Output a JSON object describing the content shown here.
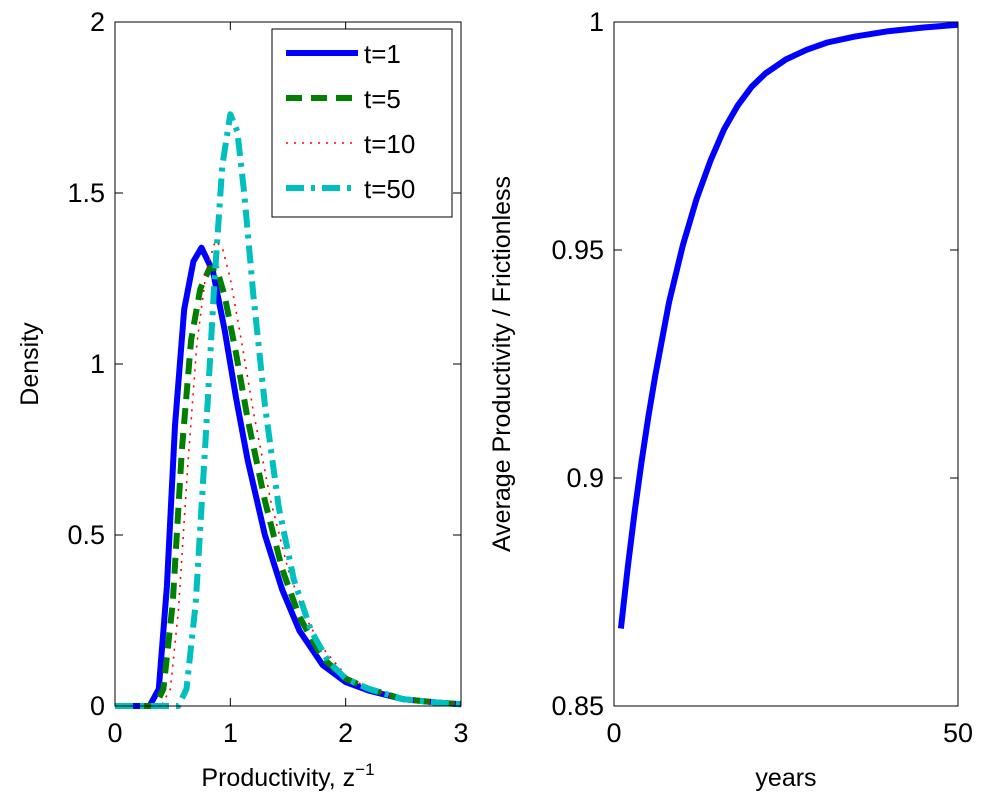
{
  "chart_data": [
    {
      "type": "line",
      "xlabel": "Productivity, z",
      "xlabel_sup": "−1",
      "ylabel": "Density",
      "xlim": [
        0,
        3
      ],
      "ylim": [
        0,
        2
      ],
      "xticks": [
        "0",
        "1",
        "2",
        "3"
      ],
      "yticks": [
        "0",
        "0.5",
        "1",
        "1.5",
        "2"
      ],
      "legend_position": "top-right",
      "series": [
        {
          "name": "t=1",
          "color": "#0000ff",
          "style": "solid",
          "x": [
            0,
            0.3,
            0.38,
            0.45,
            0.52,
            0.6,
            0.68,
            0.75,
            0.85,
            0.95,
            1.05,
            1.15,
            1.3,
            1.45,
            1.6,
            1.8,
            2.0,
            2.2,
            2.5,
            2.8,
            3.0
          ],
          "y": [
            0,
            0,
            0.05,
            0.35,
            0.82,
            1.16,
            1.3,
            1.34,
            1.27,
            1.1,
            0.9,
            0.72,
            0.5,
            0.34,
            0.22,
            0.12,
            0.07,
            0.045,
            0.02,
            0.01,
            0.005
          ]
        },
        {
          "name": "t=5",
          "color": "#007f00",
          "style": "dashed",
          "x": [
            0,
            0.35,
            0.42,
            0.5,
            0.58,
            0.66,
            0.74,
            0.82,
            0.88,
            0.95,
            1.05,
            1.15,
            1.3,
            1.45,
            1.6,
            1.8,
            2.0,
            2.2,
            2.5,
            2.8,
            3.0
          ],
          "y": [
            0,
            0,
            0.05,
            0.3,
            0.75,
            1.07,
            1.22,
            1.28,
            1.28,
            1.2,
            1.03,
            0.84,
            0.6,
            0.4,
            0.26,
            0.14,
            0.08,
            0.05,
            0.02,
            0.01,
            0.005
          ]
        },
        {
          "name": "t=10",
          "color": "#ff0000",
          "style": "dotted",
          "x": [
            0,
            0.4,
            0.48,
            0.55,
            0.63,
            0.71,
            0.79,
            0.87,
            0.93,
            1.0,
            1.1,
            1.2,
            1.35,
            1.5,
            1.65,
            1.8,
            2.0,
            2.2,
            2.5,
            2.8,
            3.0
          ],
          "y": [
            0,
            0,
            0.05,
            0.28,
            0.7,
            1.06,
            1.27,
            1.36,
            1.34,
            1.25,
            1.06,
            0.86,
            0.6,
            0.4,
            0.26,
            0.17,
            0.09,
            0.05,
            0.02,
            0.01,
            0.005
          ]
        },
        {
          "name": "t=50",
          "color": "#00bfbf",
          "style": "dashdot",
          "x": [
            0,
            0.55,
            0.62,
            0.7,
            0.78,
            0.86,
            0.93,
            1.0,
            1.06,
            1.12,
            1.2,
            1.3,
            1.42,
            1.55,
            1.7,
            1.85,
            2.0,
            2.2,
            2.5,
            2.8,
            3.0
          ],
          "y": [
            0,
            0,
            0.05,
            0.3,
            0.75,
            1.23,
            1.58,
            1.73,
            1.68,
            1.5,
            1.2,
            0.88,
            0.58,
            0.37,
            0.22,
            0.13,
            0.08,
            0.05,
            0.02,
            0.01,
            0.005
          ]
        }
      ]
    },
    {
      "type": "line",
      "xlabel": "years",
      "ylabel": "Average Productivity / Frictionless",
      "xlim": [
        0,
        50
      ],
      "ylim": [
        0.85,
        1
      ],
      "xticks": [
        "0",
        "50"
      ],
      "yticks": [
        "0.85",
        "0.9",
        "0.95",
        "1"
      ],
      "series": [
        {
          "color": "#0000ff",
          "style": "solid",
          "x": [
            1,
            2,
            3,
            4,
            5,
            6,
            8,
            10,
            12,
            14,
            16,
            18,
            20,
            22,
            25,
            28,
            31,
            35,
            40,
            45,
            50
          ],
          "y": [
            0.867,
            0.8805,
            0.8925,
            0.9035,
            0.9135,
            0.9225,
            0.9385,
            0.951,
            0.9612,
            0.9695,
            0.9765,
            0.9817,
            0.9858,
            0.9887,
            0.9918,
            0.9939,
            0.9955,
            0.9968,
            0.998,
            0.9988,
            0.9994
          ]
        }
      ]
    }
  ]
}
